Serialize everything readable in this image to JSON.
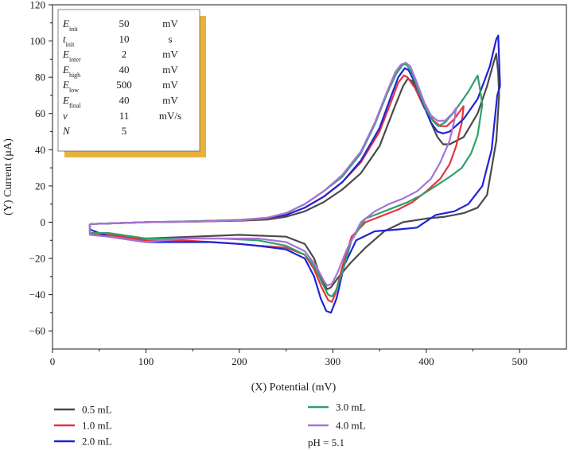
{
  "chart_data": {
    "type": "line",
    "xlabel": "(X) Potential (mV)",
    "ylabel": "(Y) Current (µA)",
    "xlim": [
      0,
      550
    ],
    "ylim": [
      -70,
      120
    ],
    "x_ticks": [
      "0",
      "100",
      "200",
      "300",
      "400",
      "500"
    ],
    "y_ticks": [
      "−60",
      "−40",
      "−20",
      "0",
      "20",
      "40",
      "60",
      "80",
      "100",
      "120"
    ],
    "grid": false,
    "legend_placement": "bottom",
    "series": [
      {
        "name": "0.5 mL",
        "color": "#4a4a4a",
        "points": [
          [
            40,
            -1
          ],
          [
            100,
            0
          ],
          [
            150,
            0.3
          ],
          [
            200,
            0.8
          ],
          [
            230,
            1.5
          ],
          [
            250,
            3
          ],
          [
            270,
            6
          ],
          [
            290,
            11
          ],
          [
            310,
            18
          ],
          [
            330,
            27
          ],
          [
            350,
            42
          ],
          [
            365,
            62
          ],
          [
            375,
            75
          ],
          [
            380,
            79
          ],
          [
            385,
            78
          ],
          [
            395,
            68
          ],
          [
            405,
            55
          ],
          [
            412,
            47
          ],
          [
            418,
            43
          ],
          [
            425,
            43
          ],
          [
            440,
            47
          ],
          [
            455,
            60
          ],
          [
            465,
            75
          ],
          [
            472,
            88
          ],
          [
            475,
            93
          ],
          [
            477,
            82
          ],
          [
            478,
            70
          ],
          [
            475,
            45
          ],
          [
            465,
            15
          ],
          [
            455,
            8
          ],
          [
            440,
            5
          ],
          [
            420,
            3
          ],
          [
            400,
            2
          ],
          [
            375,
            0
          ],
          [
            355,
            -5
          ],
          [
            335,
            -14
          ],
          [
            318,
            -23
          ],
          [
            305,
            -31
          ],
          [
            298,
            -36
          ],
          [
            294,
            -37
          ],
          [
            288,
            -32
          ],
          [
            280,
            -20
          ],
          [
            270,
            -12
          ],
          [
            250,
            -8
          ],
          [
            200,
            -7
          ],
          [
            150,
            -8
          ],
          [
            100,
            -9
          ],
          [
            60,
            -7
          ],
          [
            40,
            -6
          ],
          [
            40,
            -1
          ]
        ]
      },
      {
        "name": "1.0 mL",
        "color": "#e8343c",
        "points": [
          [
            40,
            -1
          ],
          [
            100,
            0
          ],
          [
            150,
            0.3
          ],
          [
            200,
            1
          ],
          [
            230,
            2
          ],
          [
            250,
            4
          ],
          [
            270,
            8
          ],
          [
            290,
            14
          ],
          [
            310,
            22
          ],
          [
            330,
            33
          ],
          [
            350,
            50
          ],
          [
            362,
            66
          ],
          [
            370,
            77
          ],
          [
            376,
            81
          ],
          [
            380,
            80
          ],
          [
            388,
            74
          ],
          [
            398,
            63
          ],
          [
            408,
            56
          ],
          [
            415,
            53
          ],
          [
            422,
            53
          ],
          [
            430,
            57
          ],
          [
            437,
            62
          ],
          [
            440,
            64
          ],
          [
            438,
            55
          ],
          [
            432,
            42
          ],
          [
            425,
            32
          ],
          [
            415,
            24
          ],
          [
            400,
            17
          ],
          [
            385,
            11
          ],
          [
            370,
            7
          ],
          [
            350,
            3
          ],
          [
            335,
            0
          ],
          [
            320,
            -8
          ],
          [
            310,
            -25
          ],
          [
            303,
            -39
          ],
          [
            299,
            -44
          ],
          [
            295,
            -43
          ],
          [
            288,
            -36
          ],
          [
            280,
            -26
          ],
          [
            270,
            -18
          ],
          [
            250,
            -14
          ],
          [
            220,
            -13
          ],
          [
            200,
            -12
          ],
          [
            170,
            -11
          ],
          [
            140,
            -10
          ],
          [
            100,
            -10
          ],
          [
            60,
            -7
          ],
          [
            40,
            -6
          ],
          [
            40,
            -1
          ]
        ]
      },
      {
        "name": "2.0 mL",
        "color": "#1e24d6",
        "points": [
          [
            40,
            -1
          ],
          [
            100,
            0
          ],
          [
            150,
            0.5
          ],
          [
            200,
            1.2
          ],
          [
            230,
            2.3
          ],
          [
            250,
            4
          ],
          [
            270,
            8
          ],
          [
            290,
            14
          ],
          [
            310,
            22
          ],
          [
            330,
            34
          ],
          [
            350,
            52
          ],
          [
            362,
            69
          ],
          [
            370,
            80
          ],
          [
            377,
            85
          ],
          [
            381,
            84
          ],
          [
            388,
            77
          ],
          [
            396,
            66
          ],
          [
            405,
            55
          ],
          [
            412,
            50
          ],
          [
            418,
            49
          ],
          [
            425,
            50
          ],
          [
            440,
            57
          ],
          [
            455,
            68
          ],
          [
            468,
            86
          ],
          [
            475,
            101
          ],
          [
            477,
            103
          ],
          [
            479,
            75
          ],
          [
            476,
            70
          ],
          [
            470,
            40
          ],
          [
            460,
            20
          ],
          [
            445,
            10
          ],
          [
            430,
            6
          ],
          [
            410,
            4
          ],
          [
            390,
            -3
          ],
          [
            370,
            -4
          ],
          [
            345,
            -5
          ],
          [
            325,
            -10
          ],
          [
            312,
            -24
          ],
          [
            304,
            -42
          ],
          [
            298,
            -50
          ],
          [
            293,
            -49
          ],
          [
            287,
            -42
          ],
          [
            280,
            -30
          ],
          [
            270,
            -20
          ],
          [
            250,
            -15
          ],
          [
            220,
            -13
          ],
          [
            200,
            -12
          ],
          [
            170,
            -11
          ],
          [
            140,
            -11
          ],
          [
            100,
            -11
          ],
          [
            60,
            -8
          ],
          [
            40,
            -4
          ],
          [
            40,
            -1
          ]
        ]
      },
      {
        "name": "3.0 mL",
        "color": "#2fa06b",
        "points": [
          [
            40,
            -1
          ],
          [
            100,
            0
          ],
          [
            150,
            0.5
          ],
          [
            200,
            1.2
          ],
          [
            230,
            2.5
          ],
          [
            250,
            5
          ],
          [
            270,
            10
          ],
          [
            290,
            17
          ],
          [
            310,
            25
          ],
          [
            330,
            38
          ],
          [
            345,
            54
          ],
          [
            358,
            71
          ],
          [
            368,
            82
          ],
          [
            375,
            87
          ],
          [
            379,
            87
          ],
          [
            385,
            82
          ],
          [
            392,
            72
          ],
          [
            400,
            62
          ],
          [
            407,
            56
          ],
          [
            413,
            53
          ],
          [
            420,
            55
          ],
          [
            430,
            61
          ],
          [
            445,
            72
          ],
          [
            455,
            81
          ],
          [
            457,
            75
          ],
          [
            460,
            65
          ],
          [
            455,
            48
          ],
          [
            448,
            38
          ],
          [
            438,
            30
          ],
          [
            425,
            25
          ],
          [
            410,
            20
          ],
          [
            395,
            15
          ],
          [
            380,
            11
          ],
          [
            365,
            8
          ],
          [
            350,
            5
          ],
          [
            335,
            2
          ],
          [
            320,
            -10
          ],
          [
            310,
            -28
          ],
          [
            303,
            -38
          ],
          [
            299,
            -41
          ],
          [
            295,
            -40
          ],
          [
            288,
            -33
          ],
          [
            280,
            -24
          ],
          [
            270,
            -18
          ],
          [
            250,
            -13
          ],
          [
            220,
            -10
          ],
          [
            180,
            -9
          ],
          [
            140,
            -9
          ],
          [
            100,
            -9
          ],
          [
            60,
            -6
          ],
          [
            40,
            -6
          ],
          [
            40,
            -1
          ]
        ]
      },
      {
        "name": "4.0 mL",
        "color": "#a873d6",
        "points": [
          [
            40,
            -1
          ],
          [
            100,
            0
          ],
          [
            150,
            0.4
          ],
          [
            200,
            1
          ],
          [
            230,
            2.5
          ],
          [
            250,
            5
          ],
          [
            270,
            10
          ],
          [
            290,
            17
          ],
          [
            310,
            26
          ],
          [
            330,
            39
          ],
          [
            345,
            55
          ],
          [
            358,
            72
          ],
          [
            367,
            83
          ],
          [
            373,
            87
          ],
          [
            378,
            88
          ],
          [
            383,
            86
          ],
          [
            390,
            77
          ],
          [
            398,
            66
          ],
          [
            405,
            59
          ],
          [
            412,
            56
          ],
          [
            420,
            56
          ],
          [
            428,
            60
          ],
          [
            432,
            63
          ],
          [
            430,
            56
          ],
          [
            425,
            45
          ],
          [
            415,
            33
          ],
          [
            405,
            24
          ],
          [
            390,
            17
          ],
          [
            375,
            13
          ],
          [
            360,
            10
          ],
          [
            345,
            6
          ],
          [
            330,
            0
          ],
          [
            315,
            -15
          ],
          [
            305,
            -28
          ],
          [
            299,
            -34
          ],
          [
            294,
            -35
          ],
          [
            290,
            -32
          ],
          [
            282,
            -24
          ],
          [
            270,
            -16
          ],
          [
            250,
            -11
          ],
          [
            220,
            -9
          ],
          [
            180,
            -9
          ],
          [
            140,
            -9
          ],
          [
            100,
            -11
          ],
          [
            60,
            -8
          ],
          [
            40,
            -7
          ],
          [
            40,
            -1
          ]
        ]
      }
    ],
    "params": [
      {
        "sym": "E",
        "sub": "init",
        "val": "50",
        "unit": "mV"
      },
      {
        "sym": "t",
        "sub": "init",
        "val": "10",
        "unit": "s"
      },
      {
        "sym": "E",
        "sub": "inter",
        "val": "2",
        "unit": "mV"
      },
      {
        "sym": "E",
        "sub": "high",
        "val": "40",
        "unit": "mV"
      },
      {
        "sym": "E",
        "sub": "low",
        "val": "500",
        "unit": "mV"
      },
      {
        "sym": "E",
        "sub": "final",
        "val": "40",
        "unit": "mV"
      },
      {
        "sym": "v",
        "sub": "",
        "val": "11",
        "unit": "mV/s"
      },
      {
        "sym": "N",
        "sub": "",
        "val": "5",
        "unit": ""
      }
    ],
    "params_accent_color": "#e8b13a",
    "note": "pH = 5.1"
  }
}
